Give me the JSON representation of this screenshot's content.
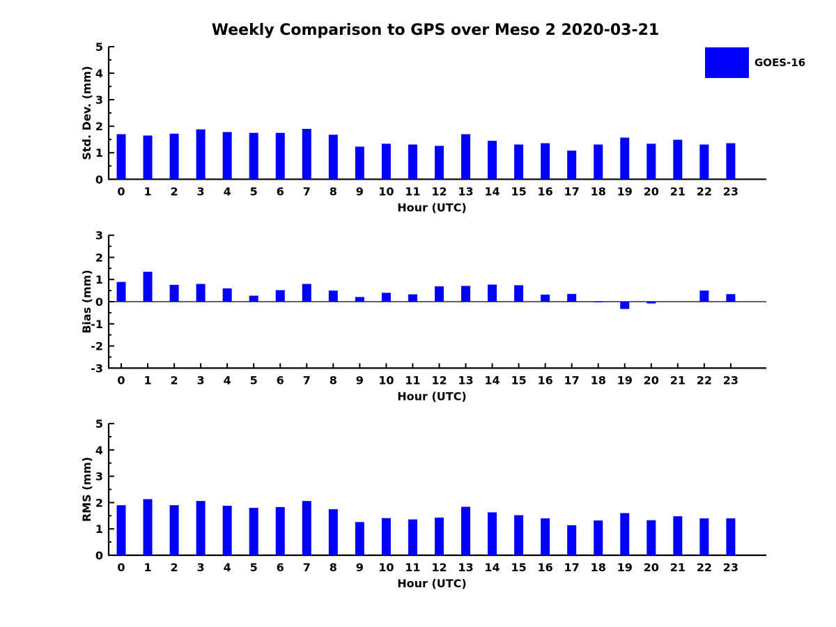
{
  "title": "Weekly Comparison to GPS over Meso 2 2020-03-21",
  "legend": {
    "label": "GOES-16",
    "color": "#0000FF"
  },
  "colors": {
    "bar": "#0000FF",
    "axis": "#000000",
    "background": "#FFFFFF"
  },
  "chart_data": [
    {
      "type": "bar",
      "title": "",
      "xlabel": "Hour (UTC)",
      "ylabel": "Std. Dev. (mm)",
      "ylim": [
        0,
        5
      ],
      "yticks": [
        0,
        1,
        2,
        3,
        4,
        5
      ],
      "grid": false,
      "legend_position": "upper right outside",
      "categories": [
        "0",
        "1",
        "2",
        "3",
        "4",
        "5",
        "6",
        "7",
        "8",
        "9",
        "10",
        "11",
        "12",
        "13",
        "14",
        "15",
        "16",
        "17",
        "18",
        "19",
        "20",
        "21",
        "22",
        "23"
      ],
      "series": [
        {
          "name": "GOES-16",
          "values": [
            1.7,
            1.65,
            1.72,
            1.88,
            1.78,
            1.75,
            1.75,
            1.9,
            1.68,
            1.23,
            1.34,
            1.31,
            1.26,
            1.7,
            1.45,
            1.31,
            1.36,
            1.08,
            1.31,
            1.57,
            1.34,
            1.49,
            1.31,
            1.36
          ]
        }
      ]
    },
    {
      "type": "bar",
      "title": "",
      "xlabel": "Hour (UTC)",
      "ylabel": "Bias (mm)",
      "ylim": [
        -3,
        3
      ],
      "yticks": [
        -3,
        -2,
        -1,
        0,
        1,
        2,
        3
      ],
      "grid": false,
      "zero_line": true,
      "categories": [
        "0",
        "1",
        "2",
        "3",
        "4",
        "5",
        "6",
        "7",
        "8",
        "9",
        "10",
        "11",
        "12",
        "13",
        "14",
        "15",
        "16",
        "17",
        "18",
        "19",
        "20",
        "21",
        "22",
        "23"
      ],
      "series": [
        {
          "name": "GOES-16",
          "values": [
            0.89,
            1.35,
            0.76,
            0.8,
            0.6,
            0.27,
            0.52,
            0.8,
            0.5,
            0.21,
            0.4,
            0.33,
            0.69,
            0.71,
            0.77,
            0.74,
            0.32,
            0.35,
            -0.03,
            -0.33,
            -0.08,
            0.0,
            0.5,
            0.34
          ]
        }
      ]
    },
    {
      "type": "bar",
      "title": "",
      "xlabel": "Hour (UTC)",
      "ylabel": "RMS (mm)",
      "ylim": [
        0,
        5
      ],
      "yticks": [
        0,
        1,
        2,
        3,
        4,
        5
      ],
      "grid": false,
      "categories": [
        "0",
        "1",
        "2",
        "3",
        "4",
        "5",
        "6",
        "7",
        "8",
        "9",
        "10",
        "11",
        "12",
        "13",
        "14",
        "15",
        "16",
        "17",
        "18",
        "19",
        "20",
        "21",
        "22",
        "23"
      ],
      "series": [
        {
          "name": "GOES-16",
          "values": [
            1.9,
            2.13,
            1.9,
            2.06,
            1.88,
            1.8,
            1.83,
            2.06,
            1.75,
            1.26,
            1.41,
            1.36,
            1.43,
            1.84,
            1.63,
            1.52,
            1.4,
            1.14,
            1.32,
            1.6,
            1.33,
            1.48,
            1.4,
            1.4
          ]
        }
      ]
    }
  ]
}
